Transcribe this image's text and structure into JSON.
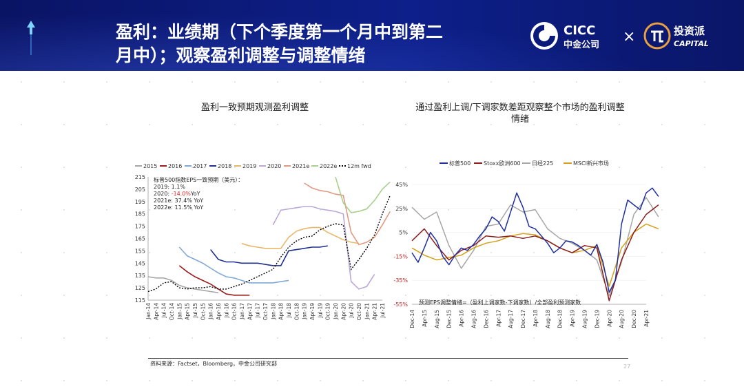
{
  "slide": {
    "title_line1": "盈利：业绩期（下个季度第一个月中到第二",
    "title_line2": "月中）；观察盈利调整与调整情绪",
    "logo_cicc_en": "CICC",
    "logo_cicc_cn": "中金公司",
    "logo_times": "×",
    "logo_tzp_cn": "投资派",
    "logo_tzp_en": "CAPITAL",
    "source": "资料来源：Factset，Bloomberg，中金公司研究部",
    "page_number": "27"
  },
  "colors": {
    "header_bg": "#0b1a7a",
    "y2015": "#a6a6a6",
    "y2016": "#9c1c1c",
    "y2017": "#7fa8d8",
    "y2018": "#1f2f8f",
    "y2019": "#e8b86a",
    "y2020": "#b9a8d8",
    "y2021e": "#e09a82",
    "y2022e": "#a8d08d",
    "fwd": "#000000",
    "sp500": "#1f2fa0",
    "stoxx": "#8b1c1c",
    "nikkei": "#a6a6a6",
    "msci": "#d4a017"
  },
  "chart_data": [
    {
      "type": "line",
      "title": "盈利一致预期观测盈利调整",
      "legend": [
        "2015",
        "2016",
        "2017",
        "2018",
        "2019",
        "2020",
        "2021e",
        "2022e",
        "12m fwd"
      ],
      "annotation_title": "标普500指数EPS一致预期（美元）：",
      "annotations": [
        {
          "label": "2019:",
          "value": "1.1%",
          "highlight": false
        },
        {
          "label": "2020:",
          "value": "-14.0%",
          "suffix": "YoY",
          "highlight": true
        },
        {
          "label": "2021e:",
          "value": "37.4% YoY",
          "highlight": false
        },
        {
          "label": "2022e:",
          "value": "11.5% YoY",
          "highlight": false
        }
      ],
      "ylim": [
        115,
        215
      ],
      "yticks": [
        215,
        205,
        195,
        185,
        175,
        165,
        155,
        145,
        135,
        125,
        115
      ],
      "xticks": [
        "Jan-14",
        "Apr-14",
        "Jul-14",
        "Oct-14",
        "Jan-15",
        "Apr-15",
        "Jul-15",
        "Oct-15",
        "Jan-16",
        "Apr-16",
        "Jul-16",
        "Oct-16",
        "Jan-17",
        "Apr-17",
        "Jul-17",
        "Oct-17",
        "Jan-18",
        "Apr-18",
        "Jul-18",
        "Oct-18",
        "Jan-19",
        "Apr-19",
        "Jul-19",
        "Oct-19",
        "Jan-20",
        "Apr-20",
        "Jul-20",
        "Oct-20",
        "Jan-21",
        "Apr-21",
        "Jul-21"
      ],
      "series": [
        {
          "name": "2015",
          "x": [
            0,
            1,
            2,
            3,
            4,
            5,
            6,
            7,
            8,
            9
          ],
          "y": [
            134,
            133,
            133,
            131,
            127,
            125,
            124,
            123,
            122,
            121
          ]
        },
        {
          "name": "2016",
          "x": [
            4,
            5,
            6,
            7,
            8,
            9,
            10,
            11,
            12,
            13
          ],
          "y": [
            143,
            138,
            134,
            131,
            128,
            124,
            120,
            119,
            119,
            119
          ]
        },
        {
          "name": "2017",
          "x": [
            4,
            5,
            6,
            7,
            8,
            9,
            10,
            11,
            12,
            13,
            14,
            15,
            16,
            17,
            18
          ],
          "y": [
            158,
            151,
            148,
            145,
            141,
            137,
            134,
            133,
            131,
            129,
            129,
            129,
            129,
            130,
            131
          ]
        },
        {
          "name": "2018",
          "x": [
            8,
            9,
            10,
            11,
            12,
            13,
            14,
            15,
            16,
            17,
            18,
            19,
            20,
            21,
            22,
            23
          ],
          "y": [
            156,
            148,
            146,
            146,
            145,
            145,
            145,
            144,
            143,
            143,
            155,
            156,
            157,
            158,
            158,
            159
          ]
        },
        {
          "name": "2019",
          "x": [
            12,
            13,
            14,
            15,
            16,
            17,
            18,
            19,
            20,
            21,
            22,
            23,
            24,
            25,
            26,
            27
          ],
          "y": [
            161,
            159,
            158,
            157,
            157,
            157,
            166,
            171,
            173,
            174,
            174,
            170,
            167,
            164,
            162,
            161
          ]
        },
        {
          "name": "2020",
          "x": [
            16,
            17,
            18,
            19,
            20,
            21,
            22,
            23,
            24,
            25,
            26,
            27,
            28,
            29
          ],
          "y": [
            176,
            188,
            189,
            190,
            191,
            191,
            189,
            188,
            187,
            185,
            130,
            124,
            126,
            136
          ]
        },
        {
          "name": "2021e",
          "x": [
            20,
            21,
            22,
            23,
            24,
            25,
            26,
            27,
            28,
            29,
            30,
            31
          ],
          "y": [
            210,
            206,
            204,
            203,
            201,
            200,
            170,
            160,
            162,
            166,
            176,
            187
          ]
        },
        {
          "name": "2022e",
          "x": [
            24,
            25,
            26,
            27,
            28,
            29,
            30,
            31
          ],
          "y": [
            215,
            194,
            186,
            187,
            189,
            196,
            205,
            211
          ]
        },
        {
          "name": "12m fwd",
          "x": [
            0,
            1,
            2,
            3,
            4,
            5,
            6,
            7,
            8,
            9,
            10,
            11,
            12,
            13,
            14,
            15,
            16,
            17,
            18,
            19,
            20,
            21,
            22,
            23,
            24,
            25,
            26,
            27,
            28,
            29,
            30,
            31
          ],
          "y": [
            122,
            124,
            129,
            130,
            125,
            124,
            125,
            125,
            126,
            124,
            124,
            126,
            128,
            131,
            134,
            137,
            140,
            150,
            158,
            163,
            166,
            167,
            172,
            175,
            177,
            176,
            140,
            148,
            157,
            168,
            185,
            200
          ]
        }
      ]
    },
    {
      "type": "line",
      "title_line1": "通过盈利上调/下调家数差距观察整个市场的盈利调整",
      "title_line2": "情绪",
      "legend": [
        "标普500",
        "Stoxx欧洲600",
        "日经225",
        "MSCI新兴市场"
      ],
      "formula_note": "预测EPS调整情绪=（盈利上调家数-下调家数）/全部盈利预测家数",
      "ylim": [
        -55,
        45
      ],
      "yticks": [
        "45%",
        "25%",
        "5%",
        "-15%",
        "-35%",
        "-55%"
      ],
      "ytick_values": [
        45,
        25,
        5,
        -15,
        -35,
        -55
      ],
      "xticks": [
        "Dec-14",
        "Apr-15",
        "Aug-15",
        "Dec-15",
        "Apr-16",
        "Aug-16",
        "Dec-16",
        "Apr-17",
        "Aug-17",
        "Dec-17",
        "Apr-18",
        "Aug-18",
        "Dec-18",
        "Apr-19",
        "Aug-19",
        "Dec-19",
        "Apr-20",
        "Aug-20",
        "Dec-20",
        "Apr-21"
      ],
      "series": [
        {
          "name": "标普500",
          "x": [
            0,
            0.5,
            1,
            1.5,
            2,
            2.5,
            3,
            3.5,
            4,
            4.5,
            5,
            5.5,
            6,
            6.5,
            7,
            7.5,
            8,
            8.5,
            9,
            9.5,
            10,
            10.5,
            11,
            11.5,
            12,
            12.5,
            13,
            13.5,
            14,
            14.5,
            15,
            15.5,
            16,
            16.5,
            17,
            17.5,
            18,
            18.5,
            19,
            19.5,
            20
          ],
          "y": [
            -12,
            -20,
            -8,
            5,
            -2,
            -15,
            -22,
            -14,
            -8,
            -10,
            -5,
            2,
            8,
            18,
            14,
            6,
            22,
            38,
            26,
            10,
            8,
            2,
            -4,
            -12,
            -8,
            -2,
            -3,
            -6,
            -10,
            -14,
            -5,
            -20,
            -45,
            -35,
            12,
            32,
            28,
            24,
            38,
            42,
            35
          ]
        },
        {
          "name": "Stoxx欧洲600",
          "x": [
            0,
            1,
            2,
            3,
            4,
            5,
            6,
            7,
            8,
            9,
            10,
            11,
            12,
            13,
            14,
            15,
            16,
            17,
            18,
            19,
            20
          ],
          "y": [
            -2,
            8,
            -6,
            -18,
            -10,
            -6,
            2,
            1,
            2,
            0,
            2,
            -2,
            -8,
            -12,
            -6,
            -8,
            -52,
            -18,
            5,
            20,
            28
          ]
        },
        {
          "name": "日经225",
          "x": [
            0,
            1,
            2,
            3,
            4,
            5,
            6,
            7,
            8,
            9,
            10,
            11,
            12,
            13,
            14,
            15,
            16,
            17,
            18,
            19,
            20
          ],
          "y": [
            26,
            16,
            22,
            -6,
            -25,
            -10,
            10,
            12,
            28,
            22,
            24,
            8,
            0,
            -4,
            -10,
            -18,
            -48,
            -20,
            20,
            34,
            18
          ]
        },
        {
          "name": "MSCI新兴市场",
          "x": [
            0,
            1,
            2,
            3,
            4,
            5,
            6,
            7,
            8,
            9,
            10,
            11,
            12,
            13,
            14,
            15,
            16,
            17,
            18,
            19,
            20
          ],
          "y": [
            -8,
            -14,
            -18,
            -16,
            -14,
            -8,
            -4,
            -2,
            2,
            4,
            3,
            -2,
            -8,
            -12,
            -10,
            -6,
            -40,
            -8,
            5,
            12,
            8
          ]
        }
      ]
    }
  ]
}
